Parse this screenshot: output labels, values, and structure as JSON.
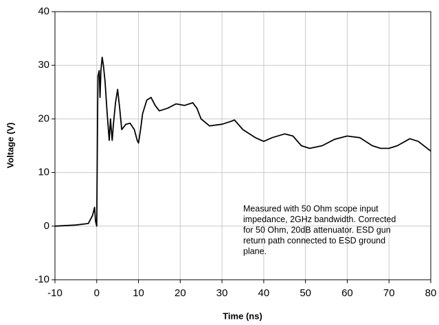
{
  "chart_data": {
    "type": "line",
    "xlabel": "Time (ns)",
    "ylabel": "Voltage (V)",
    "annotation": [
      "Measured with 50 Ohm scope input",
      "impedance, 2GHz bandwidth. Corrected",
      "for 50 Ohm, 20dB attenuator. ESD gun",
      "return path connected to ESD ground",
      "plane."
    ],
    "x": [
      -10,
      -5,
      -2,
      -1,
      -0.5,
      -0.3,
      0,
      0.2,
      0.3,
      0.6,
      0.8,
      1,
      1.3,
      1.6,
      2,
      2.5,
      3,
      3.3,
      3.7,
      4,
      4.5,
      5,
      5.5,
      6,
      7,
      8,
      9,
      9.7,
      10,
      10.5,
      11,
      12,
      13,
      14,
      15,
      17,
      19,
      21,
      23,
      24,
      25,
      27,
      30,
      32,
      33,
      35,
      38,
      40,
      42,
      45,
      47,
      49,
      51,
      54,
      57,
      60,
      63,
      66,
      68,
      70,
      72,
      75,
      77,
      80
    ],
    "series": [
      {
        "color": "#000000",
        "values": [
          0,
          0.2,
          0.5,
          2,
          3.5,
          1,
          0,
          20,
          28,
          29,
          24,
          29,
          31.5,
          30,
          27,
          21,
          16,
          20,
          16,
          19,
          23,
          25.5,
          22,
          18,
          19,
          19.2,
          18,
          16,
          15.5,
          18,
          21,
          23.5,
          24,
          22.5,
          21.5,
          22,
          22.8,
          22.5,
          23,
          22,
          20,
          18.7,
          19,
          19.5,
          19.8,
          18,
          16.5,
          15.8,
          16.5,
          17.2,
          16.8,
          15,
          14.5,
          15,
          16.2,
          16.8,
          16.5,
          15,
          14.5,
          14.5,
          15,
          16.3,
          15.8,
          14
        ]
      }
    ],
    "xlim": [
      -10,
      80
    ],
    "xticks": [
      -10,
      0,
      10,
      20,
      30,
      40,
      50,
      60,
      70,
      80
    ],
    "ylim": [
      -10,
      40
    ],
    "yticks": [
      -10,
      0,
      10,
      20,
      30,
      40
    ],
    "grid": true
  }
}
